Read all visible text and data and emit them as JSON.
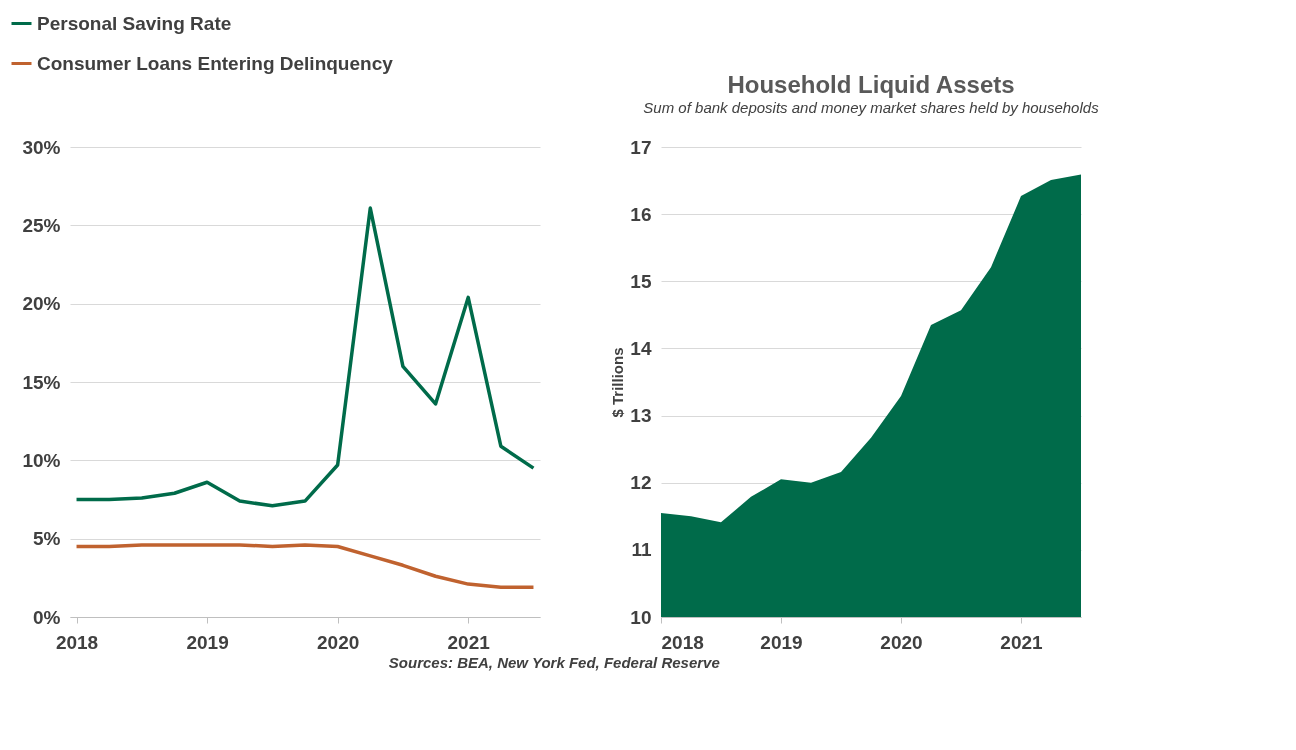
{
  "chart_data": [
    {
      "type": "line",
      "x": [
        2018,
        2018.25,
        2018.5,
        2018.75,
        2019,
        2019.25,
        2019.5,
        2019.75,
        2020,
        2020.25,
        2020.5,
        2020.75,
        2021,
        2021.25,
        2021.5
      ],
      "series": [
        {
          "name": "Personal Saving Rate",
          "color": "#006b4a",
          "values": [
            7.5,
            7.5,
            7.6,
            7.9,
            8.6,
            7.4,
            7.1,
            7.4,
            9.7,
            26.1,
            16.0,
            13.6,
            20.4,
            10.9,
            9.5
          ]
        },
        {
          "name": "Consumer Loans Entering Delinquency",
          "color": "#c0622f",
          "values": [
            4.5,
            4.5,
            4.6,
            4.6,
            4.6,
            4.6,
            4.5,
            4.6,
            4.5,
            3.9,
            3.3,
            2.6,
            2.1,
            1.9,
            1.9
          ]
        }
      ],
      "xlim": [
        2017.95,
        2021.55
      ],
      "xticks": [
        2018,
        2019,
        2020,
        2021
      ],
      "ylim": [
        0,
        30
      ],
      "yticks": [
        {
          "value": 0,
          "label": "0%"
        },
        {
          "value": 5,
          "label": "5%"
        },
        {
          "value": 10,
          "label": "10%"
        },
        {
          "value": 15,
          "label": "15%"
        },
        {
          "value": 20,
          "label": "20%"
        },
        {
          "value": 25,
          "label": "25%"
        },
        {
          "value": 30,
          "label": "30%"
        }
      ],
      "grid": "y",
      "legend": "top left",
      "line_style": "solid",
      "annotations": [
        "Sources: BEA, New York Fed, Federal Reserve"
      ]
    },
    {
      "type": "area",
      "title": "Household Liquid Assets",
      "subtitle": "Sum of bank deposits and money market shares held by households",
      "ylabel": "$ Trillions",
      "x": [
        2018,
        2018.25,
        2018.5,
        2018.75,
        2019,
        2019.25,
        2019.5,
        2019.75,
        2020,
        2020.25,
        2020.5,
        2020.75,
        2021,
        2021.25,
        2021.5
      ],
      "series": [
        {
          "color": "#006b4a",
          "values": [
            11.55,
            11.5,
            11.41,
            11.79,
            12.05,
            12.0,
            12.16,
            12.67,
            13.29,
            14.35,
            14.57,
            15.21,
            16.27,
            16.51,
            16.59
          ]
        }
      ],
      "xlim": [
        2018,
        2021.5
      ],
      "xticks": [
        2018,
        2019,
        2020,
        2021
      ],
      "ylim": [
        10,
        17
      ],
      "yticks": [
        10,
        11,
        12,
        13,
        14,
        15,
        16,
        17
      ],
      "grid": "y"
    }
  ]
}
